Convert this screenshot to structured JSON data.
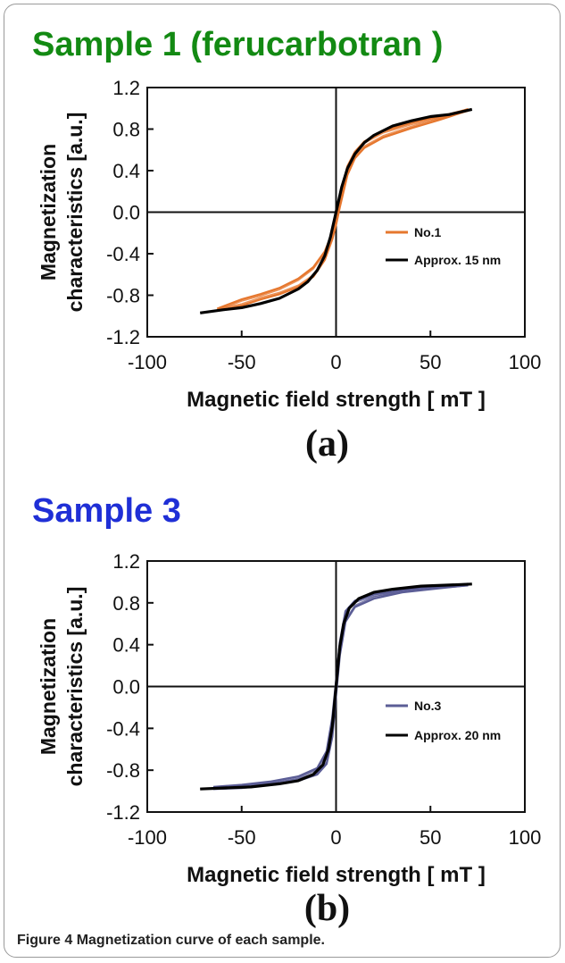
{
  "caption": {
    "label": "Figure 4",
    "text": "Magnetization curve of each sample."
  },
  "chart_data": [
    {
      "type": "line",
      "title": "Sample 1 (ferucarbotran )",
      "title_color": "#138a13",
      "panel_label": "(a)",
      "xlabel": "Magnetic field strength [ mT ]",
      "ylabel_lines": [
        "Magnetization",
        "characteristics [a.u.]"
      ],
      "xlim": [
        -100,
        100
      ],
      "ylim": [
        -1.2,
        1.2
      ],
      "xticks": [
        "-100",
        "-50",
        "0",
        "50",
        "100"
      ],
      "yticks": [
        "1.2",
        "0.8",
        "0.4",
        "0.0",
        "-0.4",
        "-0.8",
        "-1.2"
      ],
      "grid": false,
      "legend_position": "lower-right",
      "series": [
        {
          "name": "No.1",
          "color": "#e6772e",
          "style": "hysteresis-loop",
          "x": [
            -63,
            -50,
            -40,
            -30,
            -20,
            -12,
            -6,
            -2,
            0,
            2,
            6,
            10,
            15,
            25,
            40,
            55,
            70
          ],
          "y_upper": [
            -0.93,
            -0.84,
            -0.79,
            -0.73,
            -0.64,
            -0.53,
            -0.38,
            -0.2,
            -0.05,
            0.12,
            0.44,
            0.58,
            0.68,
            0.78,
            0.86,
            0.92,
            0.99
          ],
          "y_lower": [
            -0.95,
            -0.9,
            -0.84,
            -0.79,
            -0.72,
            -0.62,
            -0.46,
            -0.26,
            -0.12,
            0.05,
            0.36,
            0.52,
            0.62,
            0.72,
            0.81,
            0.89,
            0.98
          ]
        },
        {
          "name": "Approx. 15 nm",
          "color": "#000000",
          "style": "line",
          "x": [
            -72,
            -60,
            -50,
            -40,
            -30,
            -20,
            -15,
            -10,
            -6,
            -3,
            0,
            3,
            6,
            10,
            15,
            20,
            30,
            40,
            50,
            60,
            72
          ],
          "y": [
            -0.97,
            -0.94,
            -0.92,
            -0.88,
            -0.83,
            -0.74,
            -0.67,
            -0.56,
            -0.42,
            -0.24,
            0.0,
            0.24,
            0.42,
            0.56,
            0.67,
            0.74,
            0.83,
            0.88,
            0.92,
            0.94,
            0.99
          ]
        }
      ]
    },
    {
      "type": "line",
      "title": "Sample 3",
      "title_color": "#1f2fd6",
      "panel_label": "(b)",
      "xlabel": "Magnetic field strength [ mT ]",
      "ylabel_lines": [
        "Magnetization",
        "characteristics [a.u.]"
      ],
      "xlim": [
        -100,
        100
      ],
      "ylim": [
        -1.2,
        1.2
      ],
      "xticks": [
        "-100",
        "-50",
        "0",
        "50",
        "100"
      ],
      "yticks": [
        "1.2",
        "0.8",
        "0.4",
        "0.0",
        "-0.4",
        "-0.8",
        "-1.2"
      ],
      "grid": false,
      "legend_position": "lower-right",
      "series": [
        {
          "name": "No.3",
          "color": "#5b5d96",
          "style": "hysteresis-loop",
          "x": [
            -65,
            -50,
            -35,
            -20,
            -10,
            -5,
            -2,
            0,
            2,
            5,
            10,
            20,
            35,
            50,
            70
          ],
          "y_upper": [
            -0.96,
            -0.94,
            -0.91,
            -0.86,
            -0.78,
            -0.62,
            -0.3,
            0.05,
            0.42,
            0.72,
            0.82,
            0.88,
            0.92,
            0.95,
            0.98
          ],
          "y_lower": [
            -0.98,
            -0.97,
            -0.94,
            -0.9,
            -0.84,
            -0.74,
            -0.48,
            -0.08,
            0.3,
            0.62,
            0.76,
            0.84,
            0.9,
            0.93,
            0.97
          ]
        },
        {
          "name": "Approx. 20 nm",
          "color": "#000000",
          "style": "line",
          "x": [
            -72,
            -60,
            -45,
            -30,
            -20,
            -12,
            -7,
            -4,
            -2,
            0,
            2,
            4,
            7,
            12,
            20,
            30,
            45,
            60,
            72
          ],
          "y": [
            -0.98,
            -0.97,
            -0.96,
            -0.93,
            -0.9,
            -0.84,
            -0.75,
            -0.6,
            -0.38,
            0.0,
            0.38,
            0.6,
            0.75,
            0.84,
            0.9,
            0.93,
            0.96,
            0.97,
            0.98
          ]
        }
      ]
    }
  ]
}
